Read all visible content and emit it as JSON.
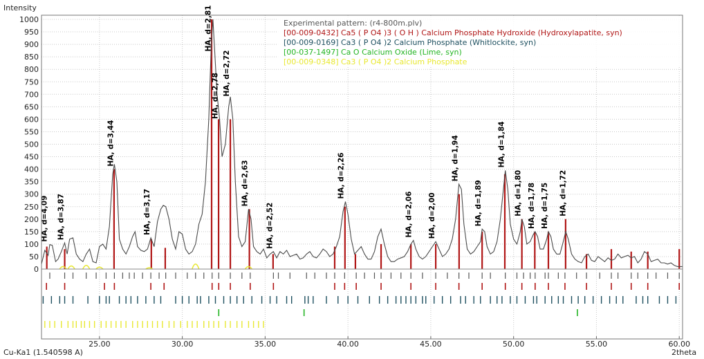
{
  "chart_data": {
    "type": "line",
    "ylabel": "Intensity",
    "xlabel": "2theta",
    "source_label": "Cu-Ka1 (1.540598 A)",
    "xlim": [
      21.5,
      60.2
    ],
    "ylim": [
      0,
      1000
    ],
    "x_ticks": [
      "25.00",
      "30.00",
      "35.00",
      "40.00",
      "45.00",
      "50.00",
      "55.00",
      "60.00"
    ],
    "y_ticks": [
      "0",
      "50",
      "100",
      "150",
      "200",
      "250",
      "300",
      "350",
      "400",
      "450",
      "500",
      "550",
      "600",
      "650",
      "700",
      "750",
      "800",
      "850",
      "900",
      "950",
      "1000"
    ],
    "grid": true,
    "legend_position": "top-right",
    "legend": [
      {
        "text": "Experimental pattern: (r4-800m.plv)",
        "color": "#555555"
      },
      {
        "text": "[00-009-0432] Ca5 ( P O4 )3 ( O H ) Calcium Phosphate Hydroxide (Hydroxylapatite, syn)",
        "color": "#b01515"
      },
      {
        "text": "[00-009-0169] Ca3 ( P O4 )2 Calcium Phosphate (Whitlockite, syn)",
        "color": "#1d4f5f"
      },
      {
        "text": "[00-037-1497] Ca O Calcium Oxide (Lime, syn)",
        "color": "#22b422"
      },
      {
        "text": "[00-009-0348] Ca3 ( P O4 )2 Calcium Phosphate",
        "color": "#e8e830"
      }
    ],
    "colors": {
      "pattern": "#4a4a4a",
      "hydroxylapatite": "#b01515",
      "whitlockite": "#1d4f5f",
      "lime": "#22b422",
      "ca3po4": "#e8e830",
      "grid": "#c8c8c8"
    },
    "annotations": [
      {
        "text": "HA, d=4,09",
        "x": 21.9,
        "y": 98
      },
      {
        "text": "HA, d=3,87",
        "x": 22.9,
        "y": 105
      },
      {
        "text": "HA, d=3,44",
        "x": 25.9,
        "y": 400
      },
      {
        "text": "HA, d=3,17",
        "x": 28.1,
        "y": 125
      },
      {
        "text": "HA, d=2,81",
        "x": 31.8,
        "y": 860
      },
      {
        "text": "HA, d=2,78",
        "x": 32.2,
        "y": 590
      },
      {
        "text": "HA, d=2,72",
        "x": 32.9,
        "y": 680
      },
      {
        "text": "HA, d=2,63",
        "x": 34.0,
        "y": 240
      },
      {
        "text": "HA, d=2,52",
        "x": 35.5,
        "y": 70
      },
      {
        "text": "HA, d=2,26",
        "x": 39.8,
        "y": 270
      },
      {
        "text": "HA, d=2,06",
        "x": 43.9,
        "y": 115
      },
      {
        "text": "HA, d=2,00",
        "x": 45.3,
        "y": 110
      },
      {
        "text": "HA, d=1,94",
        "x": 46.7,
        "y": 340
      },
      {
        "text": "HA, d=1,89",
        "x": 48.1,
        "y": 160
      },
      {
        "text": "HA, d=1,84",
        "x": 49.5,
        "y": 395
      },
      {
        "text": "HA, d=1,80",
        "x": 50.5,
        "y": 200
      },
      {
        "text": "HA, d=1,78",
        "x": 51.3,
        "y": 150
      },
      {
        "text": "HA, d=1,75",
        "x": 52.1,
        "y": 150
      },
      {
        "text": "HA, d=1,72",
        "x": 53.2,
        "y": 200
      }
    ],
    "pattern": [
      [
        21.5,
        20
      ],
      [
        21.7,
        75
      ],
      [
        21.9,
        55
      ],
      [
        22.0,
        98
      ],
      [
        22.15,
        95
      ],
      [
        22.35,
        30
      ],
      [
        22.5,
        40
      ],
      [
        22.7,
        70
      ],
      [
        22.9,
        105
      ],
      [
        23.05,
        60
      ],
      [
        23.2,
        120
      ],
      [
        23.4,
        125
      ],
      [
        23.6,
        60
      ],
      [
        23.8,
        40
      ],
      [
        24.0,
        30
      ],
      [
        24.2,
        60
      ],
      [
        24.4,
        80
      ],
      [
        24.6,
        30
      ],
      [
        24.8,
        25
      ],
      [
        25.0,
        90
      ],
      [
        25.2,
        100
      ],
      [
        25.4,
        80
      ],
      [
        25.6,
        170
      ],
      [
        25.8,
        380
      ],
      [
        25.9,
        420
      ],
      [
        26.05,
        350
      ],
      [
        26.2,
        120
      ],
      [
        26.4,
        80
      ],
      [
        26.6,
        60
      ],
      [
        26.8,
        90
      ],
      [
        27.0,
        130
      ],
      [
        27.15,
        150
      ],
      [
        27.3,
        90
      ],
      [
        27.5,
        75
      ],
      [
        27.7,
        70
      ],
      [
        27.9,
        80
      ],
      [
        28.1,
        125
      ],
      [
        28.3,
        90
      ],
      [
        28.5,
        190
      ],
      [
        28.7,
        240
      ],
      [
        28.85,
        255
      ],
      [
        29.0,
        250
      ],
      [
        29.2,
        200
      ],
      [
        29.4,
        120
      ],
      [
        29.6,
        80
      ],
      [
        29.8,
        150
      ],
      [
        30.0,
        140
      ],
      [
        30.2,
        80
      ],
      [
        30.4,
        60
      ],
      [
        30.6,
        70
      ],
      [
        30.8,
        100
      ],
      [
        31.0,
        180
      ],
      [
        31.2,
        220
      ],
      [
        31.4,
        350
      ],
      [
        31.6,
        600
      ],
      [
        31.75,
        900
      ],
      [
        31.85,
        1000
      ],
      [
        31.95,
        880
      ],
      [
        32.1,
        700
      ],
      [
        32.25,
        600
      ],
      [
        32.4,
        450
      ],
      [
        32.6,
        500
      ],
      [
        32.8,
        650
      ],
      [
        32.9,
        690
      ],
      [
        33.05,
        600
      ],
      [
        33.2,
        350
      ],
      [
        33.4,
        130
      ],
      [
        33.6,
        90
      ],
      [
        33.8,
        110
      ],
      [
        34.0,
        240
      ],
      [
        34.15,
        200
      ],
      [
        34.3,
        90
      ],
      [
        34.5,
        70
      ],
      [
        34.7,
        60
      ],
      [
        34.9,
        80
      ],
      [
        35.1,
        45
      ],
      [
        35.3,
        60
      ],
      [
        35.5,
        70
      ],
      [
        35.7,
        45
      ],
      [
        35.9,
        70
      ],
      [
        36.1,
        60
      ],
      [
        36.3,
        75
      ],
      [
        36.5,
        50
      ],
      [
        36.7,
        55
      ],
      [
        36.9,
        60
      ],
      [
        37.1,
        40
      ],
      [
        37.3,
        45
      ],
      [
        37.5,
        60
      ],
      [
        37.7,
        70
      ],
      [
        37.9,
        50
      ],
      [
        38.1,
        45
      ],
      [
        38.3,
        60
      ],
      [
        38.5,
        80
      ],
      [
        38.7,
        70
      ],
      [
        38.9,
        50
      ],
      [
        39.1,
        60
      ],
      [
        39.3,
        90
      ],
      [
        39.5,
        130
      ],
      [
        39.7,
        230
      ],
      [
        39.85,
        270
      ],
      [
        40.0,
        220
      ],
      [
        40.2,
        120
      ],
      [
        40.4,
        60
      ],
      [
        40.6,
        75
      ],
      [
        40.8,
        90
      ],
      [
        41.0,
        60
      ],
      [
        41.2,
        40
      ],
      [
        41.4,
        40
      ],
      [
        41.6,
        70
      ],
      [
        41.8,
        130
      ],
      [
        42.0,
        160
      ],
      [
        42.2,
        100
      ],
      [
        42.4,
        50
      ],
      [
        42.6,
        30
      ],
      [
        42.8,
        30
      ],
      [
        43.0,
        40
      ],
      [
        43.2,
        45
      ],
      [
        43.4,
        50
      ],
      [
        43.6,
        70
      ],
      [
        43.8,
        100
      ],
      [
        43.95,
        115
      ],
      [
        44.1,
        80
      ],
      [
        44.3,
        50
      ],
      [
        44.5,
        40
      ],
      [
        44.7,
        50
      ],
      [
        44.9,
        70
      ],
      [
        45.1,
        90
      ],
      [
        45.3,
        110
      ],
      [
        45.5,
        80
      ],
      [
        45.7,
        50
      ],
      [
        45.9,
        60
      ],
      [
        46.1,
        80
      ],
      [
        46.3,
        120
      ],
      [
        46.5,
        200
      ],
      [
        46.7,
        340
      ],
      [
        46.85,
        320
      ],
      [
        47.0,
        180
      ],
      [
        47.2,
        80
      ],
      [
        47.4,
        60
      ],
      [
        47.6,
        70
      ],
      [
        47.8,
        90
      ],
      [
        48.0,
        110
      ],
      [
        48.1,
        160
      ],
      [
        48.25,
        150
      ],
      [
        48.4,
        90
      ],
      [
        48.6,
        60
      ],
      [
        48.8,
        70
      ],
      [
        49.0,
        110
      ],
      [
        49.2,
        200
      ],
      [
        49.4,
        330
      ],
      [
        49.5,
        395
      ],
      [
        49.65,
        320
      ],
      [
        49.8,
        180
      ],
      [
        50.0,
        120
      ],
      [
        50.2,
        100
      ],
      [
        50.4,
        150
      ],
      [
        50.5,
        200
      ],
      [
        50.65,
        170
      ],
      [
        50.8,
        100
      ],
      [
        51.0,
        110
      ],
      [
        51.2,
        140
      ],
      [
        51.3,
        150
      ],
      [
        51.45,
        130
      ],
      [
        51.6,
        80
      ],
      [
        51.8,
        80
      ],
      [
        52.0,
        120
      ],
      [
        52.1,
        150
      ],
      [
        52.25,
        130
      ],
      [
        52.4,
        80
      ],
      [
        52.6,
        60
      ],
      [
        52.8,
        60
      ],
      [
        53.0,
        110
      ],
      [
        53.15,
        150
      ],
      [
        53.3,
        120
      ],
      [
        53.5,
        60
      ],
      [
        53.7,
        40
      ],
      [
        53.9,
        30
      ],
      [
        54.1,
        25
      ],
      [
        54.3,
        50
      ],
      [
        54.5,
        60
      ],
      [
        54.7,
        35
      ],
      [
        54.9,
        30
      ],
      [
        55.1,
        50
      ],
      [
        55.3,
        40
      ],
      [
        55.5,
        30
      ],
      [
        55.7,
        45
      ],
      [
        55.9,
        35
      ],
      [
        56.1,
        40
      ],
      [
        56.3,
        60
      ],
      [
        56.5,
        45
      ],
      [
        56.7,
        50
      ],
      [
        56.9,
        55
      ],
      [
        57.1,
        45
      ],
      [
        57.3,
        50
      ],
      [
        57.5,
        25
      ],
      [
        57.7,
        40
      ],
      [
        57.9,
        70
      ],
      [
        58.1,
        60
      ],
      [
        58.3,
        30
      ],
      [
        58.5,
        35
      ],
      [
        58.7,
        40
      ],
      [
        58.9,
        25
      ],
      [
        59.1,
        25
      ],
      [
        59.3,
        20
      ],
      [
        59.5,
        25
      ],
      [
        59.7,
        15
      ],
      [
        59.9,
        10
      ],
      [
        60.2,
        10
      ]
    ],
    "ha_sticks": [
      [
        21.82,
        90
      ],
      [
        22.9,
        80
      ],
      [
        25.88,
        400
      ],
      [
        28.13,
        120
      ],
      [
        28.97,
        85
      ],
      [
        31.77,
        1000
      ],
      [
        32.19,
        600
      ],
      [
        32.9,
        600
      ],
      [
        34.05,
        240
      ],
      [
        35.48,
        60
      ],
      [
        39.2,
        90
      ],
      [
        39.82,
        250
      ],
      [
        40.45,
        60
      ],
      [
        42.0,
        100
      ],
      [
        43.8,
        100
      ],
      [
        45.3,
        100
      ],
      [
        46.71,
        300
      ],
      [
        48.1,
        150
      ],
      [
        49.47,
        380
      ],
      [
        50.5,
        200
      ],
      [
        51.28,
        150
      ],
      [
        52.1,
        150
      ],
      [
        53.14,
        200
      ],
      [
        54.4,
        60
      ],
      [
        55.9,
        80
      ],
      [
        57.1,
        70
      ],
      [
        58.1,
        70
      ],
      [
        60.0,
        80
      ]
    ],
    "ref_ticks": {
      "row1": [
        22.0,
        22.9,
        23.4,
        24.2,
        24.8,
        25.4,
        25.9,
        26.4,
        26.8,
        27.1,
        27.6,
        28.1,
        28.6,
        29.0,
        29.6,
        30.3,
        30.8,
        31.3,
        31.8,
        32.2,
        32.9,
        33.6,
        34.1,
        35.5,
        35.8,
        36.5,
        37.5,
        38.0,
        38.7,
        39.2,
        39.8,
        40.5,
        41.0,
        41.6,
        42.0,
        42.6,
        43.2,
        43.8,
        44.5,
        45.3,
        46.0,
        46.7,
        47.3,
        48.1,
        48.6,
        49.5,
        50.2,
        50.6,
        51.0,
        51.3,
        51.9,
        52.1,
        52.7,
        53.1,
        53.8,
        54.4,
        55.2,
        55.9,
        56.3,
        57.1,
        57.5,
        58.1,
        58.6,
        59.3,
        60.0
      ],
      "row2": [
        21.8,
        22.9,
        25.3,
        25.9,
        28.1,
        28.9,
        31.8,
        32.2,
        32.9,
        34.1,
        35.5,
        39.2,
        39.8,
        40.5,
        42.0,
        43.8,
        45.3,
        46.7,
        48.1,
        49.5,
        50.5,
        51.3,
        52.1,
        53.1,
        54.4,
        55.9,
        57.1,
        58.1,
        60.0
      ],
      "row3": [
        21.6,
        22.1,
        22.6,
        22.9,
        23.4,
        24.3,
        25.0,
        25.4,
        25.6,
        26.2,
        26.6,
        26.9,
        27.3,
        27.8,
        28.3,
        28.7,
        29.6,
        30.0,
        30.4,
        30.9,
        31.1,
        31.6,
        32.0,
        32.5,
        32.9,
        33.3,
        33.7,
        34.2,
        34.8,
        35.3,
        35.7,
        36.3,
        36.6,
        37.4,
        37.6,
        37.9,
        38.7,
        39.4,
        40.0,
        40.6,
        41.3,
        41.9,
        42.4,
        42.9,
        43.2,
        43.5,
        43.8,
        44.1,
        44.5,
        44.7,
        45.2,
        45.7,
        46.2,
        46.8,
        47.1,
        47.6,
        48.0,
        48.6,
        49.0,
        49.3,
        49.8,
        50.2,
        50.7,
        51.2,
        51.4,
        51.9,
        52.3,
        52.7,
        53.0,
        53.5,
        53.9,
        54.3,
        54.8,
        55.3,
        55.8,
        56.2,
        56.6,
        57.4,
        57.8,
        58.1,
        58.8,
        59.3,
        59.8
      ],
      "row4": [
        32.2,
        37.35,
        53.85
      ],
      "row5": [
        21.7,
        22.0,
        22.3,
        22.7,
        23.1,
        23.4,
        23.6,
        23.9,
        24.1,
        24.4,
        24.7,
        25.1,
        25.4,
        25.7,
        26.0,
        26.3,
        26.6,
        27.0,
        27.3,
        27.6,
        27.9,
        28.2,
        28.5,
        28.8,
        29.2,
        29.5,
        29.9,
        30.3,
        30.6,
        30.9,
        31.3,
        31.6,
        31.9,
        32.2,
        32.6,
        32.9,
        33.3,
        33.6,
        34.0,
        34.3,
        34.6,
        34.9
      ]
    },
    "yellow_pattern": [
      [
        22.8,
        20
      ],
      [
        23.3,
        25
      ],
      [
        24.2,
        30
      ],
      [
        25.0,
        15
      ],
      [
        28.0,
        10
      ],
      [
        30.8,
        40
      ],
      [
        34.0,
        20
      ]
    ]
  }
}
